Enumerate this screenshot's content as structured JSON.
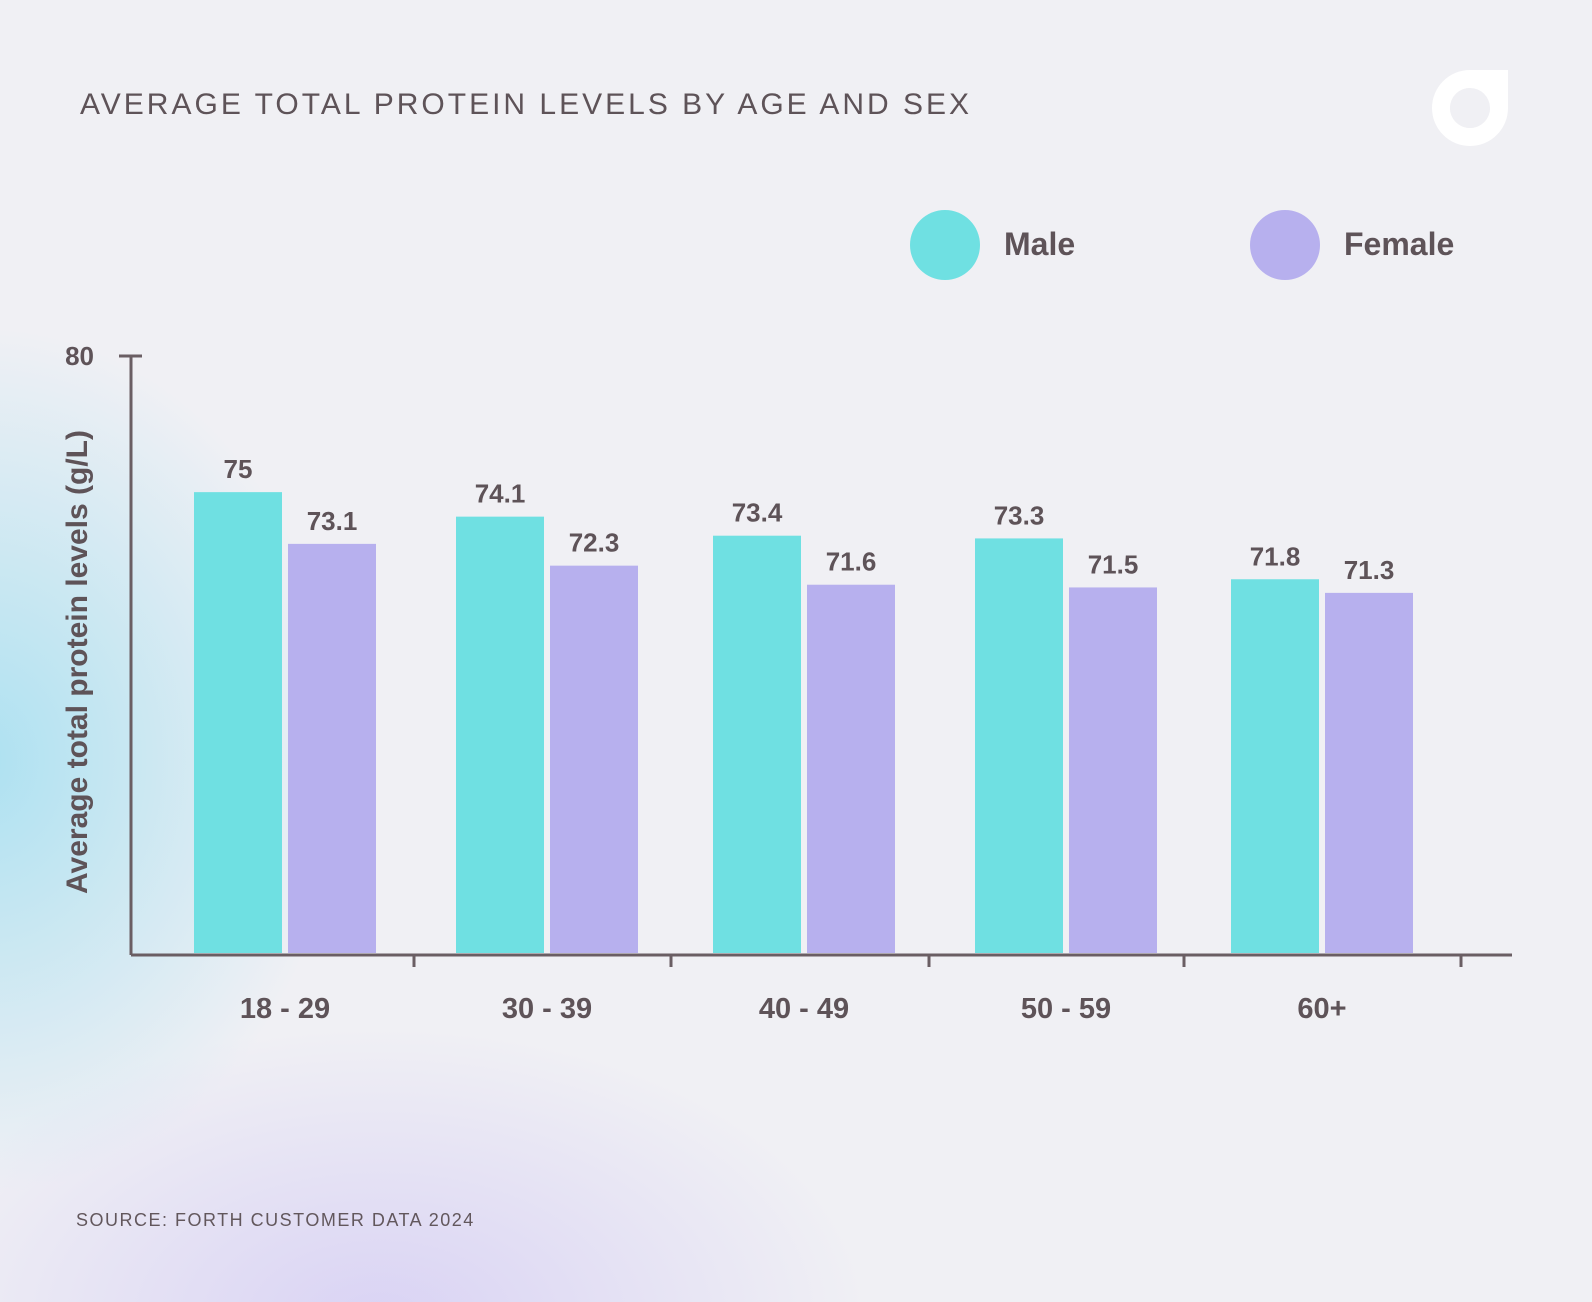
{
  "title": "AVERAGE TOTAL PROTEIN LEVELS BY AGE AND SEX",
  "source": "SOURCE: FORTH CUSTOMER DATA 2024",
  "colors": {
    "male": "#6fe0e2",
    "female": "#b7b0ee",
    "axis": "#6a5e63",
    "text": "#5e5358"
  },
  "legend": {
    "male": "Male",
    "female": "Female"
  },
  "chart_data": {
    "type": "bar",
    "title": "AVERAGE TOTAL PROTEIN LEVELS BY AGE AND SEX",
    "xlabel": "",
    "ylabel": "Average total protein  levels (g/L)",
    "categories": [
      "18 - 29",
      "30 - 39",
      "40 - 49",
      "50 - 59",
      "60+"
    ],
    "series": [
      {
        "name": "Male",
        "values": [
          75,
          74.1,
          73.4,
          73.3,
          71.8
        ],
        "labels": [
          "75",
          "74.1",
          "73.4",
          "73.3",
          "71.8"
        ]
      },
      {
        "name": "Female",
        "values": [
          73.1,
          72.3,
          71.6,
          71.5,
          71.3
        ],
        "labels": [
          "73.1",
          "72.3",
          "71.6",
          "71.5",
          "71.3"
        ]
      }
    ],
    "ylim": [
      58,
      80
    ],
    "yticks": [
      "80"
    ],
    "grid": false,
    "legend_position": "top-right"
  }
}
